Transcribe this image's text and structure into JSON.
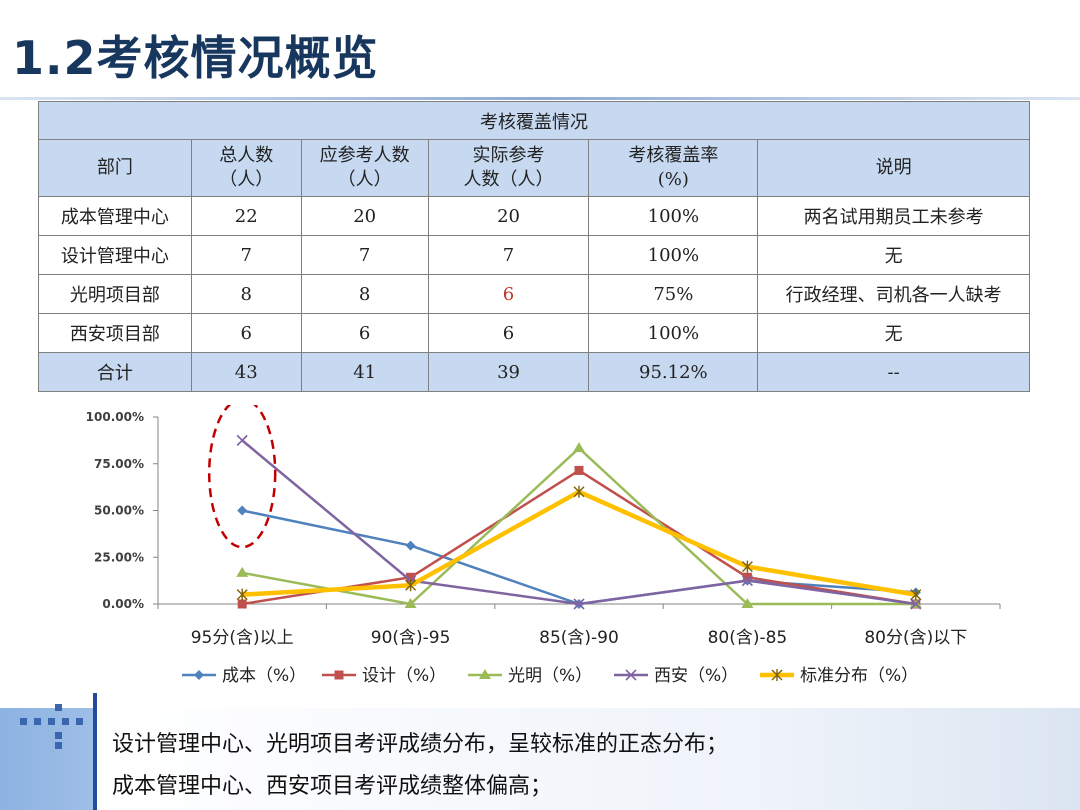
{
  "page": {
    "title": "1.2考核情况概览"
  },
  "table": {
    "caption": "考核覆盖情况",
    "headers": [
      [
        "部门"
      ],
      [
        "总人数",
        "（人）"
      ],
      [
        "应参考人数",
        "（人）"
      ],
      [
        "实际参考",
        "人数（人）"
      ],
      [
        "考核覆盖率",
        "(%)"
      ],
      [
        "说明"
      ]
    ],
    "rows": [
      [
        "成本管理中心",
        "22",
        "20",
        "20",
        "100%",
        "两名试用期员工未参考"
      ],
      [
        "设计管理中心",
        "7",
        "7",
        "7",
        "100%",
        "无"
      ],
      [
        "光明项目部",
        "8",
        "8",
        "6",
        "75%",
        "行政经理、司机各一人缺考"
      ],
      [
        "西安项目部",
        "6",
        "6",
        "6",
        "100%",
        "无"
      ]
    ],
    "total": [
      "合计",
      "43",
      "41",
      "39",
      "95.12%",
      "--"
    ],
    "highlight_color": "#c0392b"
  },
  "chart_data": {
    "type": "line",
    "categories": [
      "95分(含)以上",
      "90(含)-95",
      "85(含)-90",
      "80(含)-85",
      "80分(含)以下"
    ],
    "y_tick_labels": [
      "0.00%",
      "25.00%",
      "50.00%",
      "75.00%",
      "100.00%"
    ],
    "ylim": [
      0,
      100
    ],
    "grid": false,
    "legend_position": "bottom",
    "series": [
      {
        "name": "成本（%）",
        "values": [
          50.0,
          31.25,
          0,
          12.5,
          6.25
        ],
        "color": "#4f81bd",
        "marker": "diamond"
      },
      {
        "name": "设计（%）",
        "values": [
          0,
          14.29,
          71.43,
          14.29,
          0
        ],
        "color": "#c0504d",
        "marker": "square"
      },
      {
        "name": "光明（%）",
        "values": [
          16.67,
          0,
          83.33,
          0,
          0
        ],
        "color": "#9bbb59",
        "marker": "triangle"
      },
      {
        "name": "西安（%）",
        "values": [
          87.5,
          12.5,
          0,
          12.5,
          0
        ],
        "color": "#8064a2",
        "marker": "x"
      },
      {
        "name": "标准分布（%）",
        "values": [
          5,
          10,
          60,
          20,
          5
        ],
        "color": "#ffc000",
        "marker": "star"
      }
    ],
    "annotation": {
      "type": "dashed-ellipse",
      "color": "#c00000",
      "category_index": 0
    }
  },
  "footer": {
    "line1": "设计管理中心、光明项目考评成绩分布，呈较标准的正态分布；",
    "line2": "成本管理中心、西安项目考评成绩整体偏高；"
  }
}
